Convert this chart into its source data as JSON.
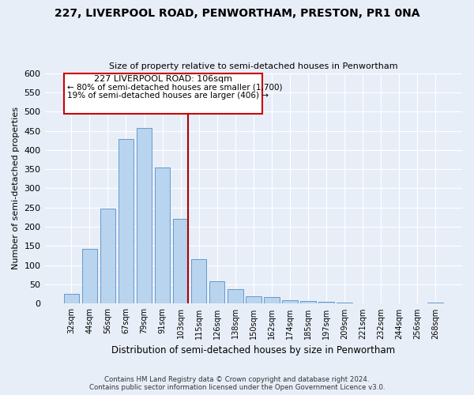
{
  "title": "227, LIVERPOOL ROAD, PENWORTHAM, PRESTON, PR1 0NA",
  "subtitle": "Size of property relative to semi-detached houses in Penwortham",
  "xlabel": "Distribution of semi-detached houses by size in Penwortham",
  "ylabel": "Number of semi-detached properties",
  "bar_labels": [
    "32sqm",
    "44sqm",
    "56sqm",
    "67sqm",
    "79sqm",
    "91sqm",
    "103sqm",
    "115sqm",
    "126sqm",
    "138sqm",
    "150sqm",
    "162sqm",
    "174sqm",
    "185sqm",
    "197sqm",
    "209sqm",
    "221sqm",
    "232sqm",
    "244sqm",
    "256sqm",
    "268sqm"
  ],
  "bar_values": [
    25,
    143,
    248,
    428,
    458,
    355,
    220,
    117,
    58,
    37,
    20,
    17,
    10,
    8,
    5,
    2,
    1,
    0,
    0,
    0,
    2
  ],
  "bar_color": "#b8d4ee",
  "bar_edge_color": "#6699cc",
  "highlight_line_color": "#aa0000",
  "ylim": [
    0,
    600
  ],
  "yticks": [
    0,
    50,
    100,
    150,
    200,
    250,
    300,
    350,
    400,
    450,
    500,
    550,
    600
  ],
  "annotation_title": "227 LIVERPOOL ROAD: 106sqm",
  "annotation_line1": "← 80% of semi-detached houses are smaller (1,700)",
  "annotation_line2": "19% of semi-detached houses are larger (406) →",
  "footer_line1": "Contains HM Land Registry data © Crown copyright and database right 2024.",
  "footer_line2": "Contains public sector information licensed under the Open Government Licence v3.0.",
  "bg_color": "#e8eef8",
  "grid_color": "#ffffff"
}
